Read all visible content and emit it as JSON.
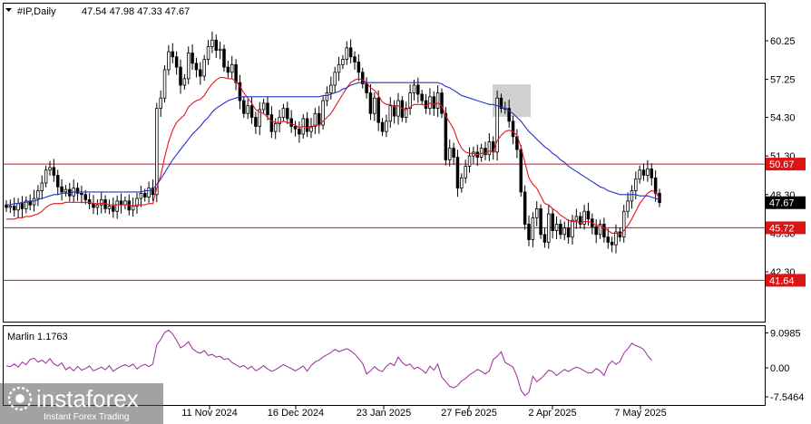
{
  "header": {
    "symbol": "#IP,Daily",
    "ohlc": "47.54 47.98 47.33 47.67"
  },
  "colors": {
    "bull": "#ffffff",
    "bear": "#000000",
    "ma_red": "#e8141e",
    "ma_blue": "#2233cc",
    "level_line": "#d21414",
    "level_label_bg": "#dc1414",
    "current_label_bg": "#000000",
    "marlin_line": "#9a2a9a",
    "box_fill": "#c8c8c8"
  },
  "chart_data": [
    {
      "type": "candlestick",
      "title": "#IP,Daily",
      "ylim": [
        41.3,
        62.0
      ],
      "yticks": [
        "60.25",
        "57.25",
        "54.30",
        "51.30",
        "48.30",
        "45.30",
        "42.30"
      ],
      "xticks": [
        "11 Nov 2024",
        "16 Dec 2024",
        "23 Jan 2025",
        "27 Feb 2025",
        "2 Apr 2025",
        "7 May 2025"
      ],
      "current_price": "47.67",
      "levels": [
        {
          "value": "50.67",
          "price": 50.67
        },
        {
          "value": "45.72",
          "price": 45.72
        },
        {
          "value": "41.64",
          "price": 41.64
        }
      ],
      "close_series": [
        47.3,
        47.4,
        47.1,
        47.6,
        47.2,
        47.8,
        47.5,
        48.0,
        48.6,
        49.2,
        50.2,
        50.4,
        49.8,
        48.9,
        48.5,
        48.7,
        48.2,
        48.8,
        48.4,
        48.3,
        47.9,
        47.6,
        47.3,
        47.5,
        47.9,
        47.2,
        47.4,
        47.0,
        47.8,
        47.5,
        47.8,
        47.1,
        47.4,
        48.0,
        48.4,
        48.1,
        48.8,
        48.3,
        55.0,
        55.8,
        58.0,
        59.4,
        59.0,
        58.2,
        56.8,
        57.3,
        59.3,
        58.5,
        58.0,
        57.5,
        58.8,
        59.8,
        60.3,
        59.5,
        59.6,
        58.2,
        57.8,
        58.4,
        57.0,
        55.6,
        54.6,
        55.2,
        54.3,
        53.6,
        54.9,
        55.4,
        54.5,
        53.2,
        53.8,
        54.3,
        55.0,
        54.2,
        53.6,
        53.4,
        53.0,
        54.2,
        53.2,
        53.6,
        54.6,
        53.7,
        55.6,
        56.2,
        56.8,
        57.8,
        58.4,
        58.8,
        59.7,
        59.0,
        58.6,
        57.8,
        56.9,
        56.2,
        54.6,
        55.8,
        53.9,
        53.2,
        54.0,
        55.2,
        54.4,
        55.6,
        54.3,
        55.0,
        56.2,
        56.8,
        56.1,
        55.6,
        55.0,
        55.9,
        55.0,
        56.2,
        54.6,
        51.0,
        51.9,
        51.2,
        48.8,
        49.6,
        50.5,
        51.3,
        51.6,
        51.2,
        51.9,
        51.4,
        52.4,
        51.6,
        55.8,
        55.0,
        55.0,
        54.0,
        52.8,
        51.8,
        48.5,
        46.0,
        44.8,
        46.5,
        47.2,
        45.2,
        44.6,
        46.8,
        45.5,
        46.0,
        45.2,
        45.7,
        45.0,
        46.3,
        46.6,
        46.0,
        47.0,
        46.4,
        45.8,
        45.2,
        46.0,
        45.0,
        44.6,
        44.4,
        45.4,
        45.0,
        47.0,
        47.8,
        48.6,
        49.5,
        50.2,
        49.8,
        50.3,
        49.6,
        48.4,
        47.67
      ],
      "ma_red_series": [
        46.4,
        46.4,
        46.4,
        46.5,
        46.5,
        46.6,
        46.6,
        46.7,
        46.8,
        47.0,
        47.3,
        47.5,
        47.6,
        47.6,
        47.6,
        47.7,
        47.7,
        47.7,
        47.7,
        47.7,
        47.7,
        47.7,
        47.6,
        47.6,
        47.6,
        47.6,
        47.5,
        47.5,
        47.5,
        47.5,
        47.5,
        47.5,
        47.4,
        47.5,
        47.5,
        47.5,
        47.6,
        47.6,
        48.8,
        49.8,
        51.2,
        52.4,
        53.3,
        53.9,
        54.2,
        54.5,
        55.1,
        55.4,
        55.6,
        55.7,
        56.0,
        56.5,
        56.9,
        57.2,
        57.4,
        57.4,
        57.3,
        57.3,
        57.1,
        56.7,
        56.2,
        55.8,
        55.4,
        54.9,
        54.7,
        54.6,
        54.3,
        54.0,
        53.9,
        53.9,
        54.0,
        53.9,
        53.8,
        53.7,
        53.5,
        53.6,
        53.5,
        53.5,
        53.7,
        53.7,
        54.0,
        54.3,
        54.6,
        55.1,
        55.6,
        56.1,
        56.6,
        57.0,
        57.2,
        57.3,
        57.2,
        57.0,
        56.6,
        56.4,
        56.0,
        55.5,
        55.3,
        55.3,
        55.1,
        55.2,
        55.0,
        54.9,
        55.1,
        55.3,
        55.3,
        55.3,
        55.2,
        55.4,
        55.3,
        55.4,
        55.2,
        54.4,
        53.9,
        53.4,
        52.5,
        51.9,
        51.6,
        51.5,
        51.5,
        51.4,
        51.5,
        51.5,
        51.7,
        51.6,
        52.5,
        52.9,
        53.2,
        53.3,
        53.2,
        52.9,
        52.0,
        50.8,
        49.6,
        49.1,
        48.8,
        48.2,
        47.6,
        47.5,
        47.2,
        47.0,
        46.7,
        46.5,
        46.3,
        46.2,
        46.2,
        46.1,
        46.2,
        46.2,
        46.1,
        45.9,
        45.9,
        45.7,
        45.5,
        45.3,
        45.3,
        45.2,
        45.5,
        45.9,
        46.4,
        47.0,
        47.6,
        48.0,
        48.4,
        48.6,
        48.5,
        48.0
      ],
      "ma_blue_series": [
        47.5,
        47.5,
        47.6,
        47.6,
        47.7,
        47.7,
        47.8,
        47.8,
        47.9,
        48.0,
        48.1,
        48.2,
        48.3,
        48.3,
        48.4,
        48.4,
        48.4,
        48.5,
        48.5,
        48.5,
        48.5,
        48.5,
        48.5,
        48.5,
        48.5,
        48.5,
        48.5,
        48.5,
        48.5,
        48.5,
        48.5,
        48.5,
        48.5,
        48.5,
        48.5,
        48.6,
        48.6,
        48.7,
        49.1,
        49.5,
        50.0,
        50.5,
        51.0,
        51.4,
        51.8,
        52.2,
        52.6,
        53.0,
        53.3,
        53.6,
        54.0,
        54.3,
        54.7,
        55.0,
        55.2,
        55.4,
        55.6,
        55.7,
        55.8,
        55.9,
        55.9,
        55.9,
        55.9,
        55.9,
        55.9,
        55.9,
        55.9,
        55.9,
        55.9,
        55.9,
        55.9,
        55.9,
        55.9,
        55.9,
        55.9,
        55.9,
        55.9,
        55.9,
        55.9,
        55.9,
        56.0,
        56.0,
        56.1,
        56.2,
        56.3,
        56.5,
        56.6,
        56.8,
        56.9,
        57.0,
        57.0,
        57.0,
        57.0,
        57.0,
        57.0,
        57.0,
        57.0,
        57.0,
        57.0,
        57.0,
        57.0,
        57.0,
        57.0,
        57.0,
        57.0,
        57.0,
        57.0,
        57.0,
        57.0,
        57.0,
        56.9,
        56.7,
        56.6,
        56.4,
        56.2,
        56.0,
        55.9,
        55.8,
        55.7,
        55.6,
        55.5,
        55.4,
        55.3,
        55.3,
        55.2,
        55.1,
        55.0,
        54.8,
        54.6,
        54.3,
        54.0,
        53.6,
        53.2,
        52.9,
        52.6,
        52.3,
        52.0,
        51.8,
        51.5,
        51.3,
        51.0,
        50.8,
        50.5,
        50.3,
        50.1,
        49.9,
        49.7,
        49.5,
        49.3,
        49.1,
        48.9,
        48.8,
        48.6,
        48.5,
        48.4,
        48.3,
        48.3,
        48.3,
        48.3,
        48.3,
        48.2,
        48.2,
        48.2,
        48.1,
        48.0,
        47.9
      ]
    },
    {
      "type": "line",
      "title": "Marlin 1.1763",
      "yticks": [
        "9.0985",
        "0.00",
        "-7.5464"
      ],
      "ylim": [
        -9.0,
        11.0
      ],
      "series": [
        {
          "name": "Marlin 1.1763",
          "values": [
            0.5,
            0.3,
            1.0,
            0.2,
            1.5,
            0.8,
            2.2,
            2.5,
            1.5,
            2.0,
            1.2,
            2.4,
            1.0,
            0.5,
            1.3,
            -0.5,
            0.2,
            -0.8,
            0.4,
            -0.6,
            -0.2,
            0.5,
            -0.8,
            -0.3,
            0.2,
            -0.5,
            0.6,
            -0.9,
            -0.2,
            0.4,
            0.8,
            0.3,
            1.0,
            -0.3,
            0.5,
            0.9,
            0.3,
            1.0,
            6.0,
            7.4,
            9.2,
            9.8,
            8.8,
            7.2,
            5.2,
            5.8,
            6.8,
            5.0,
            4.2,
            3.8,
            4.5,
            3.2,
            3.5,
            2.8,
            3.0,
            2.2,
            2.4,
            1.4,
            0.8,
            0.2,
            0.6,
            -0.3,
            0.4,
            -0.8,
            -0.2,
            0.6,
            -0.3,
            -0.9,
            -0.5,
            0.2,
            0.8,
            0.3,
            -0.2,
            -0.8,
            -0.2,
            0.5,
            -0.9,
            0.6,
            1.5,
            2.0,
            2.8,
            3.4,
            4.0,
            4.8,
            4.2,
            4.6,
            5.0,
            4.4,
            3.6,
            2.4,
            1.2,
            -1.6,
            -0.8,
            0.3,
            -0.6,
            -1.0,
            0.4,
            1.2,
            0.6,
            2.8,
            1.4,
            0.6,
            1.0,
            -0.3,
            0.2,
            -0.6,
            -1.4,
            0.4,
            -0.6,
            1.0,
            -2.4,
            -3.6,
            -4.8,
            -5.2,
            -4.6,
            -3.4,
            -2.8,
            -1.8,
            -1.2,
            -0.4,
            -0.9,
            -1.6,
            -0.8,
            2.2,
            3.0,
            4.2,
            1.4,
            0.8,
            0.2,
            -2.2,
            -5.8,
            -7.2,
            -6.4,
            -2.2,
            -3.6,
            -2.8,
            -1.8,
            -0.6,
            -1.0,
            -2.0,
            -1.2,
            -0.4,
            -1.0,
            -0.3,
            0.2,
            -0.2,
            -0.8,
            -1.4,
            -1.2,
            -0.2,
            -0.8,
            -2.0,
            0.6,
            1.8,
            0.9,
            1.6,
            3.8,
            5.0,
            6.4,
            5.8,
            5.4,
            4.8,
            3.2,
            2.0
          ]
        }
      ]
    }
  ],
  "watermark": {
    "brand": "instaforex",
    "tagline": "Instant Forex Trading"
  }
}
